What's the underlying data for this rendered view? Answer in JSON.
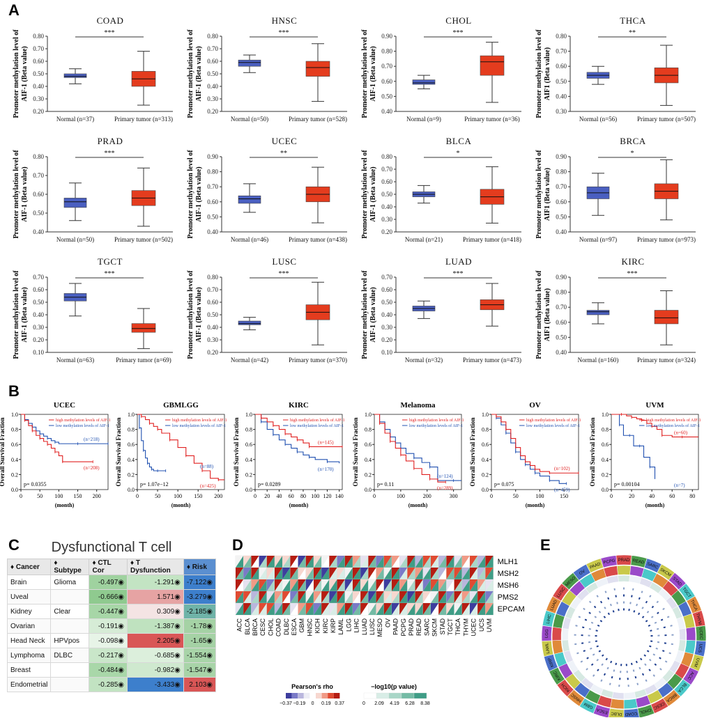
{
  "panel_labels": {
    "a": "A",
    "b": "B",
    "c": "C",
    "d": "D",
    "e": "E"
  },
  "colors": {
    "normal": "#4a5fc0",
    "tumor": "#e43c1e",
    "high": "#e02020",
    "low": "#2050b0"
  },
  "shared": {
    "ylabel_line1": "Promoter methylation level of",
    "ylabel_line2_a": "AIF-1 (Beta value)",
    "ylabel_line2_b": "AIF1 (Beta value)",
    "km_ylabel": "Overall Survival Fraction",
    "km_xlabel": "(month)",
    "high_label": "high methylation levels of AIF-1",
    "low_label": "low methylation levels of AIF-1"
  },
  "chart_data": [
    {
      "type": "box",
      "title": "COAD",
      "sig": "***",
      "ylabel_variant": "a",
      "ylim": [
        0.2,
        0.8
      ],
      "yticks": [
        "0.20",
        "0.30",
        "0.40",
        "0.50",
        "0.60",
        "0.70",
        "0.80"
      ],
      "groups": [
        {
          "label": "Normal (n=37)",
          "min": 0.42,
          "q1": 0.47,
          "median": 0.48,
          "q3": 0.5,
          "max": 0.54
        },
        {
          "label": "Primary tumor (n=313)",
          "min": 0.25,
          "q1": 0.4,
          "median": 0.46,
          "q3": 0.52,
          "max": 0.68
        }
      ]
    },
    {
      "type": "box",
      "title": "HNSC",
      "sig": "***",
      "ylabel_variant": "a",
      "ylim": [
        0.2,
        0.8
      ],
      "yticks": [
        "0.20",
        "0.30",
        "0.40",
        "0.50",
        "0.60",
        "0.70",
        "0.80"
      ],
      "groups": [
        {
          "label": "Normal (n=50)",
          "min": 0.51,
          "q1": 0.56,
          "median": 0.59,
          "q3": 0.61,
          "max": 0.65
        },
        {
          "label": "Primary tumor (n=528)",
          "min": 0.28,
          "q1": 0.48,
          "median": 0.55,
          "q3": 0.6,
          "max": 0.74
        }
      ]
    },
    {
      "type": "box",
      "title": "CHOL",
      "sig": "***",
      "ylabel_variant": "a",
      "ylim": [
        0.4,
        0.9
      ],
      "yticks": [
        "0.40",
        "0.50",
        "0.60",
        "0.70",
        "0.80",
        "0.90"
      ],
      "groups": [
        {
          "label": "Normal (n=9)",
          "min": 0.55,
          "q1": 0.58,
          "median": 0.59,
          "q3": 0.61,
          "max": 0.64
        },
        {
          "label": "Primary tumor (n=36)",
          "min": 0.46,
          "q1": 0.64,
          "median": 0.73,
          "q3": 0.77,
          "max": 0.86
        }
      ]
    },
    {
      "type": "box",
      "title": "THCA",
      "sig": "**",
      "ylabel_variant": "b",
      "ylim": [
        0.3,
        0.8
      ],
      "yticks": [
        "0.30",
        "0.40",
        "0.50",
        "0.60",
        "0.70",
        "0.80"
      ],
      "groups": [
        {
          "label": "Normal (n=56)",
          "min": 0.48,
          "q1": 0.52,
          "median": 0.54,
          "q3": 0.56,
          "max": 0.6
        },
        {
          "label": "Primary tumor (n=507)",
          "min": 0.34,
          "q1": 0.49,
          "median": 0.54,
          "q3": 0.59,
          "max": 0.74
        }
      ]
    },
    {
      "type": "box",
      "title": "PRAD",
      "sig": "***",
      "ylabel_variant": "a",
      "ylim": [
        0.4,
        0.8
      ],
      "yticks": [
        "0.40",
        "0.50",
        "0.60",
        "0.70",
        "0.80"
      ],
      "groups": [
        {
          "label": "Normal (n=50)",
          "min": 0.46,
          "q1": 0.53,
          "median": 0.56,
          "q3": 0.58,
          "max": 0.66
        },
        {
          "label": "Primary tumor (n=502)",
          "min": 0.43,
          "q1": 0.54,
          "median": 0.58,
          "q3": 0.62,
          "max": 0.74
        }
      ]
    },
    {
      "type": "box",
      "title": "UCEC",
      "sig": "**",
      "ylabel_variant": "a",
      "ylim": [
        0.4,
        0.9
      ],
      "yticks": [
        "0.40",
        "0.50",
        "0.60",
        "0.70",
        "0.80",
        "0.90"
      ],
      "groups": [
        {
          "label": "Normal (n=46)",
          "min": 0.53,
          "q1": 0.59,
          "median": 0.62,
          "q3": 0.64,
          "max": 0.72
        },
        {
          "label": "Primary tumor (n=438)",
          "min": 0.46,
          "q1": 0.6,
          "median": 0.65,
          "q3": 0.7,
          "max": 0.83
        }
      ]
    },
    {
      "type": "box",
      "title": "BLCA",
      "sig": "*",
      "ylabel_variant": "a",
      "ylim": [
        0.2,
        0.8
      ],
      "yticks": [
        "0.20",
        "0.30",
        "0.40",
        "0.50",
        "0.60",
        "0.70",
        "0.80"
      ],
      "groups": [
        {
          "label": "Normal (n=21)",
          "min": 0.43,
          "q1": 0.48,
          "median": 0.5,
          "q3": 0.52,
          "max": 0.57
        },
        {
          "label": "Primary tumor (n=418)",
          "min": 0.27,
          "q1": 0.42,
          "median": 0.48,
          "q3": 0.54,
          "max": 0.72
        }
      ]
    },
    {
      "type": "box",
      "title": "BRCA",
      "sig": "*",
      "ylabel_variant": "b",
      "ylim": [
        0.4,
        0.9
      ],
      "yticks": [
        "0.40",
        "0.50",
        "0.60",
        "0.70",
        "0.80",
        "0.90"
      ],
      "groups": [
        {
          "label": "Normal (n=97)",
          "min": 0.51,
          "q1": 0.62,
          "median": 0.66,
          "q3": 0.7,
          "max": 0.79
        },
        {
          "label": "Primary tumor (n=973)",
          "min": 0.48,
          "q1": 0.62,
          "median": 0.67,
          "q3": 0.72,
          "max": 0.88
        }
      ]
    },
    {
      "type": "box",
      "title": "TGCT",
      "sig": "***",
      "ylabel_variant": "a",
      "ylim": [
        0.1,
        0.7
      ],
      "yticks": [
        "0.10",
        "0.20",
        "0.30",
        "0.40",
        "0.50",
        "0.60",
        "0.70"
      ],
      "groups": [
        {
          "label": "Normal (n=63)",
          "min": 0.39,
          "q1": 0.51,
          "median": 0.54,
          "q3": 0.57,
          "max": 0.65
        },
        {
          "label": "Primary tumor (n=69)",
          "min": 0.13,
          "q1": 0.26,
          "median": 0.29,
          "q3": 0.33,
          "max": 0.45
        }
      ]
    },
    {
      "type": "box",
      "title": "LUSC",
      "sig": "***",
      "ylabel_variant": "a",
      "ylim": [
        0.2,
        0.8
      ],
      "yticks": [
        "0.20",
        "0.30",
        "0.40",
        "0.50",
        "0.60",
        "0.70",
        "0.80"
      ],
      "groups": [
        {
          "label": "Normal (n=42)",
          "min": 0.38,
          "q1": 0.42,
          "median": 0.43,
          "q3": 0.45,
          "max": 0.48
        },
        {
          "label": "Primary tumor (n=370)",
          "min": 0.26,
          "q1": 0.46,
          "median": 0.52,
          "q3": 0.58,
          "max": 0.76
        }
      ]
    },
    {
      "type": "box",
      "title": "LUAD",
      "sig": "***",
      "ylabel_variant": "a",
      "ylim": [
        0.1,
        0.7
      ],
      "yticks": [
        "0.10",
        "0.20",
        "0.30",
        "0.40",
        "0.50",
        "0.60",
        "0.70"
      ],
      "groups": [
        {
          "label": "Normal (n=32)",
          "min": 0.37,
          "q1": 0.43,
          "median": 0.45,
          "q3": 0.47,
          "max": 0.51
        },
        {
          "label": "Primary tumor (n=473)",
          "min": 0.31,
          "q1": 0.44,
          "median": 0.48,
          "q3": 0.52,
          "max": 0.65
        }
      ]
    },
    {
      "type": "box",
      "title": "KIRC",
      "sig": "***",
      "ylabel_variant": "b",
      "ylim": [
        0.4,
        0.9
      ],
      "yticks": [
        "0.40",
        "0.50",
        "0.60",
        "0.70",
        "0.80",
        "0.90"
      ],
      "groups": [
        {
          "label": "Normal (n=160)",
          "min": 0.59,
          "q1": 0.65,
          "median": 0.67,
          "q3": 0.68,
          "max": 0.73
        },
        {
          "label": "Primary tumor (n=324)",
          "min": 0.45,
          "q1": 0.59,
          "median": 0.63,
          "q3": 0.68,
          "max": 0.81
        }
      ]
    },
    {
      "type": "line",
      "title": "UCEC",
      "p": "p= 0.0355",
      "xticks": [
        "0",
        "50",
        "100",
        "150",
        "200"
      ],
      "xmax": 230,
      "yticks": [
        "0.0",
        "0.2",
        "0.4",
        "0.6",
        "0.8",
        "1.0"
      ],
      "n_high": "(n=208)",
      "n_low": "(n=218)",
      "high": {
        "x": [
          0,
          10,
          20,
          30,
          40,
          50,
          60,
          70,
          80,
          90,
          100,
          110,
          120,
          190
        ],
        "y": [
          1,
          0.92,
          0.85,
          0.78,
          0.72,
          0.68,
          0.64,
          0.6,
          0.55,
          0.5,
          0.45,
          0.37,
          0.37,
          0.37
        ]
      },
      "low": {
        "x": [
          0,
          10,
          20,
          30,
          40,
          50,
          60,
          70,
          80,
          90,
          100,
          150,
          200,
          230
        ],
        "y": [
          1,
          0.93,
          0.88,
          0.83,
          0.78,
          0.74,
          0.71,
          0.68,
          0.65,
          0.63,
          0.61,
          0.61,
          0.61,
          0.61
        ]
      }
    },
    {
      "type": "line",
      "title": "GBMLGG",
      "p": "p= 1.07e−12",
      "xticks": [
        "0",
        "50",
        "100",
        "150",
        "200"
      ],
      "xmax": 215,
      "yticks": [
        "0.0",
        "0.2",
        "0.4",
        "0.6",
        "0.8",
        "1.0"
      ],
      "n_high": "(n=425)",
      "n_low": "(n=88)",
      "high": {
        "x": [
          0,
          10,
          20,
          30,
          40,
          50,
          60,
          80,
          100,
          120,
          140,
          160,
          180,
          200,
          215
        ],
        "y": [
          1,
          0.97,
          0.93,
          0.88,
          0.84,
          0.8,
          0.75,
          0.66,
          0.56,
          0.45,
          0.35,
          0.25,
          0.15,
          0.13,
          0.13
        ]
      },
      "low": {
        "x": [
          0,
          5,
          10,
          15,
          20,
          25,
          30,
          35,
          40,
          50,
          60,
          70
        ],
        "y": [
          1,
          0.82,
          0.65,
          0.52,
          0.42,
          0.35,
          0.3,
          0.27,
          0.25,
          0.25,
          0.25,
          0.25
        ]
      }
    },
    {
      "type": "line",
      "title": "KIRC",
      "p": "p= 0.0289",
      "xticks": [
        "0",
        "20",
        "40",
        "60",
        "80",
        "100",
        "120",
        "140"
      ],
      "xmax": 145,
      "yticks": [
        "0.0",
        "0.2",
        "0.4",
        "0.6",
        "0.8",
        "1.0"
      ],
      "n_high": "(n=145)",
      "n_low": "(n=170)",
      "high": {
        "x": [
          0,
          10,
          20,
          30,
          40,
          50,
          60,
          70,
          80,
          90,
          100,
          145
        ],
        "y": [
          1,
          0.95,
          0.9,
          0.85,
          0.8,
          0.74,
          0.7,
          0.66,
          0.62,
          0.57,
          0.57,
          0.57
        ]
      },
      "low": {
        "x": [
          0,
          10,
          20,
          30,
          40,
          50,
          60,
          70,
          80,
          90,
          100,
          120,
          140
        ],
        "y": [
          1,
          0.9,
          0.8,
          0.73,
          0.66,
          0.6,
          0.55,
          0.5,
          0.46,
          0.43,
          0.4,
          0.37,
          0.35
        ]
      }
    },
    {
      "type": "line",
      "title": "Melanoma",
      "p": "p= 0.11",
      "xticks": [
        "0",
        "100",
        "200",
        "300"
      ],
      "xmax": 330,
      "yticks": [
        "0.0",
        "0.2",
        "0.4",
        "0.6",
        "0.8",
        "1.0"
      ],
      "n_high": "(n=289)",
      "n_low": "(n=124)",
      "high": {
        "x": [
          0,
          20,
          40,
          60,
          80,
          100,
          120,
          150,
          180,
          210,
          240,
          270
        ],
        "y": [
          1,
          0.88,
          0.75,
          0.64,
          0.55,
          0.46,
          0.38,
          0.28,
          0.2,
          0.14,
          0.1,
          0.1
        ]
      },
      "low": {
        "x": [
          0,
          20,
          40,
          60,
          80,
          100,
          120,
          150,
          180,
          210,
          240,
          300,
          330
        ],
        "y": [
          1,
          0.9,
          0.8,
          0.7,
          0.62,
          0.55,
          0.48,
          0.42,
          0.36,
          0.3,
          0.12,
          0.12,
          0.12
        ]
      }
    },
    {
      "type": "line",
      "title": "OV",
      "p": "p= 0.075",
      "xticks": [
        "0",
        "50",
        "100",
        "150"
      ],
      "xmax": 180,
      "yticks": [
        "0.0",
        "0.2",
        "0.4",
        "0.6",
        "0.8",
        "1.0"
      ],
      "n_high": "(n=102)",
      "n_low": "(n=459)",
      "high": {
        "x": [
          0,
          10,
          20,
          30,
          40,
          50,
          60,
          70,
          80,
          90,
          100,
          120,
          150,
          180
        ],
        "y": [
          1,
          0.97,
          0.9,
          0.8,
          0.68,
          0.56,
          0.45,
          0.37,
          0.32,
          0.27,
          0.24,
          0.22,
          0.22,
          0.22
        ]
      },
      "low": {
        "x": [
          0,
          10,
          20,
          30,
          40,
          50,
          60,
          70,
          80,
          90,
          100,
          120,
          140,
          155
        ],
        "y": [
          1,
          0.95,
          0.86,
          0.75,
          0.62,
          0.5,
          0.4,
          0.33,
          0.27,
          0.22,
          0.18,
          0.12,
          0.08,
          0.08
        ]
      }
    },
    {
      "type": "line",
      "title": "UVM",
      "p": "p= 0.00104",
      "xticks": [
        "0",
        "20",
        "40",
        "60",
        "80"
      ],
      "xmax": 86,
      "yticks": [
        "0.0",
        "0.2",
        "0.4",
        "0.6",
        "0.8",
        "1.0"
      ],
      "n_high": "(n=60)",
      "n_low": "(n=7)",
      "high": {
        "x": [
          0,
          10,
          15,
          20,
          25,
          30,
          35,
          40,
          45,
          50,
          60,
          70,
          86
        ],
        "y": [
          1,
          1,
          0.98,
          0.96,
          0.94,
          0.92,
          0.88,
          0.84,
          0.8,
          0.72,
          0.7,
          0.7,
          0.7
        ]
      },
      "low": {
        "x": [
          0,
          8,
          12,
          18,
          22,
          28,
          32,
          38,
          43
        ],
        "y": [
          1,
          0.86,
          0.72,
          0.72,
          0.58,
          0.58,
          0.43,
          0.3,
          0.14
        ]
      }
    },
    {
      "type": "table",
      "title": "Dysfunctional T cell",
      "headers": [
        "♦ Cancer",
        "♦ Subtype",
        "♦ CTL Cor",
        "♦ T Dysfunction",
        "♦ Risk"
      ],
      "rows": [
        [
          "Brain",
          "Glioma",
          "-0.497",
          "-1.291",
          "-7.122"
        ],
        [
          "Uveal",
          "",
          "-0.666",
          "1.571",
          "-3.279"
        ],
        [
          "Kidney",
          "Clear",
          "-0.447",
          "0.309",
          "-2.185"
        ],
        [
          "Ovarian",
          "",
          "-0.191",
          "-1.387",
          "-1.78"
        ],
        [
          "Head Neck",
          "HPVpos",
          "-0.098",
          "2.205",
          "-1.65"
        ],
        [
          "Lymphoma",
          "DLBC",
          "-0.217",
          "-0.685",
          "-1.554"
        ],
        [
          "Breast",
          "",
          "-0.484",
          "-0.982",
          "-1.547"
        ],
        [
          "Endometrial",
          "",
          "-0.285",
          "-3.433",
          "2.103"
        ]
      ],
      "ctl_colors": [
        "#9fd29f",
        "#8fca8f",
        "#a7d6a7",
        "#d6ecd6",
        "#e7f4e7",
        "#c9e6c9",
        "#a9d7a9",
        "#c2e3c2"
      ],
      "tdys_colors": [
        "#c3e4c3",
        "#e6a3a3",
        "#f4e4e4",
        "#bfe2bf",
        "#d95656",
        "#dcefdc",
        "#cfe9cf",
        "#3d7fcc"
      ],
      "risk_colors": [
        "#3d7fcc",
        "#3d7fcc",
        "#6fb3a8",
        "#a5d2a5",
        "#a5d2a5",
        "#a8d4a8",
        "#a8d4a8",
        "#d95656"
      ]
    },
    {
      "type": "heatmap",
      "genes": [
        "MLH1",
        "MSH2",
        "MSH6",
        "PMS2",
        "EPCAM"
      ],
      "cancers": [
        "ACC",
        "BLCA",
        "BRCA",
        "CESC",
        "CHOL",
        "COAD",
        "DLBC",
        "ESCA",
        "GBM",
        "HNSC",
        "KICH",
        "KIRC",
        "KIRP",
        "LAML",
        "LGG",
        "LIHC",
        "LUAD",
        "LUSC",
        "MESO",
        "OV",
        "PAAD",
        "PCPG",
        "PRAD",
        "READ",
        "SARC",
        "SKCM",
        "STAD",
        "TGCT",
        "THCA",
        "THYM",
        "UCEC",
        "UCS",
        "UVM"
      ],
      "legend_rho_title": "Pearson's rho",
      "rho_ticks": [
        "−0.37",
        "−0.19",
        "0",
        "0.19",
        "0.37"
      ],
      "legend_p_title": "−log10(p value)",
      "p_ticks": [
        "0",
        "2.09",
        "4.19",
        "6.28",
        "8.38"
      ]
    },
    {
      "type": "diagram",
      "ring_labels": [
        "PRAD",
        "READ",
        "SARC",
        "SKCM",
        "STAD",
        "TGCT",
        "THCA",
        "THYM",
        "UCEC",
        "UCS",
        "UVM",
        "ACC",
        "BLCA",
        "BRCA",
        "CESC",
        "CHOL",
        "COAD",
        "DLBC",
        "ESCA",
        "GBM",
        "HNSC",
        "KICH",
        "KIRC",
        "KIRP",
        "LAML",
        "LGG",
        "LIHC",
        "LUAD",
        "LUSC",
        "MESO",
        "OV",
        "PAAD",
        "PCPG"
      ]
    }
  ]
}
